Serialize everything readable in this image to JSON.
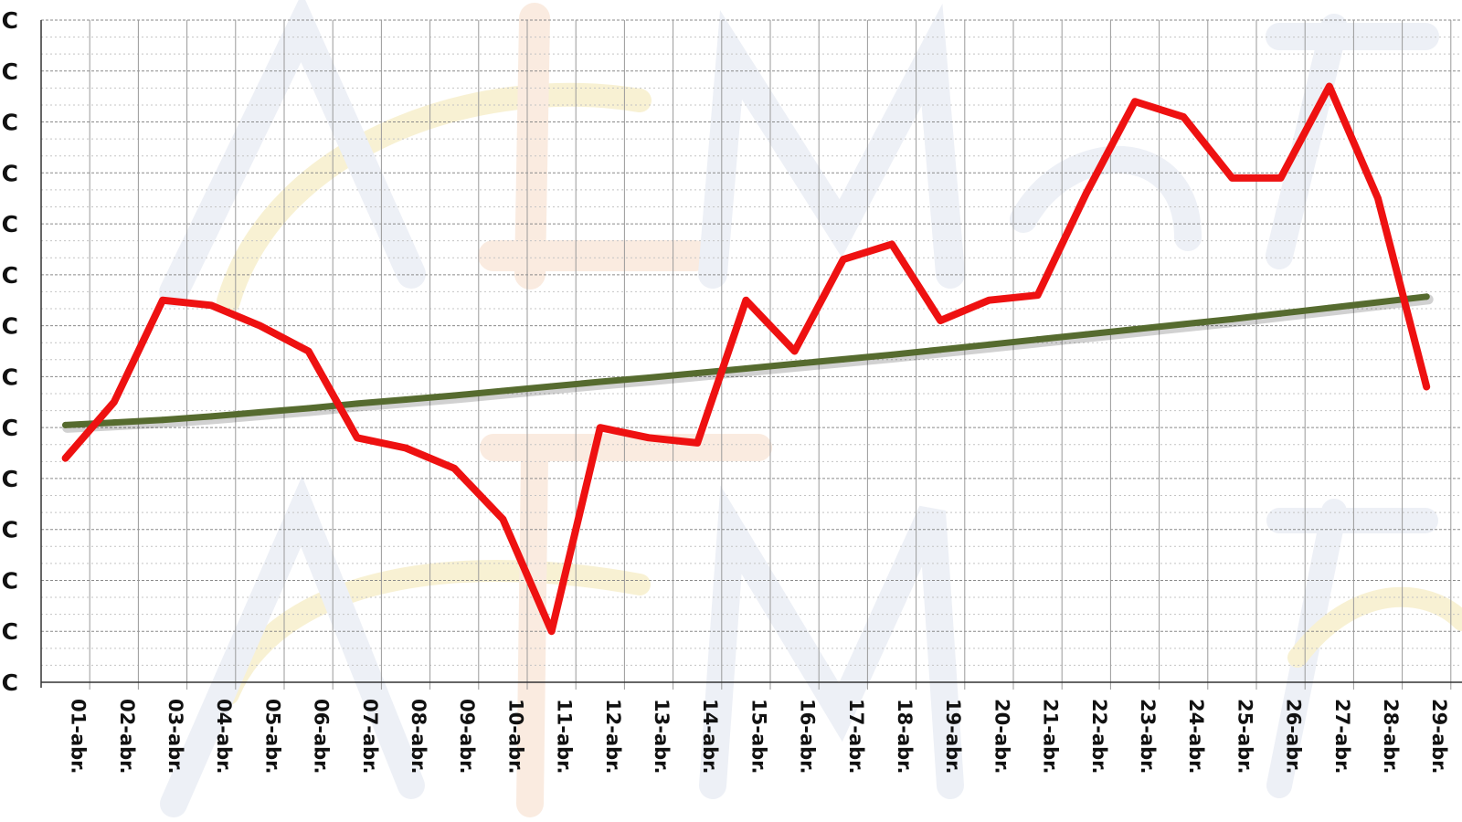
{
  "chart_data": {
    "type": "line",
    "title": "",
    "xlabel": "",
    "ylabel": "",
    "categories": [
      "01-abr.",
      "02-abr.",
      "03-abr.",
      "04-abr.",
      "05-abr.",
      "06-abr.",
      "07-abr.",
      "08-abr.",
      "09-abr.",
      "10-abr.",
      "11-abr.",
      "12-abr.",
      "13-abr.",
      "14-abr.",
      "15-abr.",
      "16-abr.",
      "17-abr.",
      "18-abr.",
      "19-abr.",
      "20-abr.",
      "21-abr.",
      "22-abr.",
      "23-abr.",
      "24-abr.",
      "25-abr.",
      "26-abr.",
      "27-abr.",
      "28-abr.",
      "29-abr."
    ],
    "y_tick_labels": [
      "C",
      "C",
      "C",
      "C",
      "C",
      "C",
      "C",
      "C",
      "C",
      "C",
      "C",
      "C",
      "C",
      "C"
    ],
    "ylim": [
      0,
      13
    ],
    "grid": true,
    "series": [
      {
        "color": "#ee1111",
        "values": [
          4.4,
          5.5,
          7.5,
          7.4,
          7.0,
          6.5,
          4.8,
          4.6,
          4.2,
          3.2,
          1.0,
          5.0,
          4.8,
          4.7,
          7.5,
          6.5,
          8.3,
          8.6,
          7.1,
          7.5,
          7.6,
          9.6,
          11.4,
          11.1,
          9.9,
          9.9,
          11.7,
          9.5,
          5.8
        ]
      },
      {
        "color": "#566b2f",
        "values": [
          5.05,
          5.1,
          5.15,
          5.22,
          5.3,
          5.38,
          5.47,
          5.55,
          5.63,
          5.72,
          5.81,
          5.9,
          5.98,
          6.07,
          6.16,
          6.25,
          6.34,
          6.43,
          6.53,
          6.63,
          6.73,
          6.83,
          6.93,
          7.03,
          7.13,
          7.24,
          7.35,
          7.46,
          7.57
        ]
      }
    ]
  }
}
